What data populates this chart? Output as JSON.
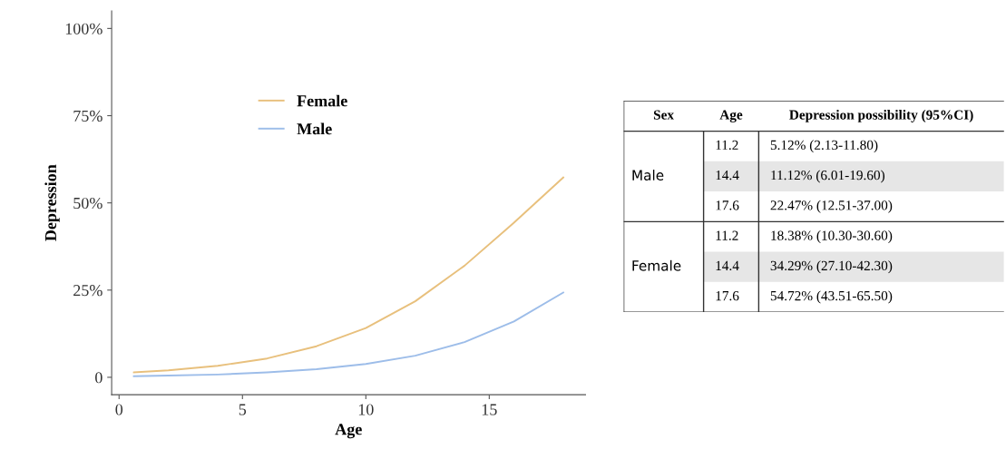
{
  "chart_data": [
    {
      "type": "line",
      "xlabel": "Age",
      "ylabel": "Depression",
      "xlim": [
        -0.3,
        18.9
      ],
      "ylim": [
        -5,
        105
      ],
      "xticks": [
        0,
        5,
        10,
        15
      ],
      "yticks": [
        {
          "value": 0,
          "label": "0"
        },
        {
          "value": 25,
          "label": "25%"
        },
        {
          "value": 50,
          "label": "50%"
        },
        {
          "value": 75,
          "label": "75%"
        },
        {
          "value": 100,
          "label": "100%"
        }
      ],
      "x": [
        0.6,
        2,
        4,
        6,
        8,
        10,
        12,
        14,
        16,
        18
      ],
      "series": [
        {
          "name": "Female",
          "color": "#e8c07d",
          "values": [
            1.4,
            2.0,
            3.3,
            5.4,
            8.9,
            14.1,
            21.8,
            32.0,
            44.3,
            57.3
          ]
        },
        {
          "name": "Male",
          "color": "#9dbde9",
          "values": [
            0.3,
            0.5,
            0.8,
            1.4,
            2.3,
            3.8,
            6.2,
            10.1,
            16.0,
            24.3
          ]
        }
      ],
      "grid": false,
      "legend": "top left",
      "marker": "none",
      "line_style": "solid"
    },
    {
      "type": "other",
      "annotations": [
        "Sex",
        "Age",
        "Depression possibility (95%CI)",
        "Male",
        "11.2",
        "5.12% (2.13-11.80)",
        "14.4",
        "11.12% (6.01-19.60)",
        "17.6",
        "22.47% (12.51-37.00)",
        "Female",
        "11.2",
        "18.38% (10.30-30.60)",
        "14.4",
        "34.29% (27.10-42.30)",
        "17.6",
        "54.72% (43.51-65.50)"
      ]
    }
  ]
}
